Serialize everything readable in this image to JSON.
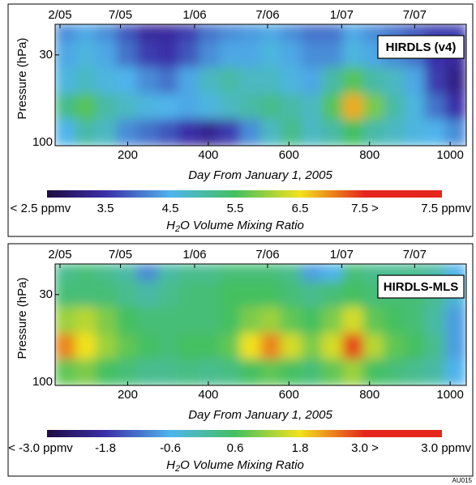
{
  "chart_data": [
    {
      "type": "heatmap",
      "title": "HIRDLS (v4)",
      "xlabel": "Day From January 1, 2005",
      "ylabel": "Pressure (hPa)",
      "xlim": [
        20,
        1040
      ],
      "xticks": [
        200,
        400,
        600,
        800,
        1000
      ],
      "x2ticks": [
        {
          "value": 32,
          "label": "2/05"
        },
        {
          "value": 182,
          "label": "7/05"
        },
        {
          "value": 366,
          "label": "1/06"
        },
        {
          "value": 547,
          "label": "7/06"
        },
        {
          "value": 731,
          "label": "1/07"
        },
        {
          "value": 912,
          "label": "7/07"
        }
      ],
      "ylim": [
        100,
        20
      ],
      "yticks": [
        30,
        100
      ],
      "log_y": true,
      "x_bins": [
        20,
        71,
        122,
        173,
        224,
        275,
        326,
        377,
        428,
        479,
        530,
        581,
        632,
        683,
        734,
        785,
        836,
        887,
        938,
        989,
        1040
      ],
      "y_bins": [
        100,
        70,
        50,
        35,
        25,
        20
      ],
      "z": [
        [
          4.5,
          5.0,
          4.8,
          4.2,
          4.0,
          3.8,
          3.5,
          3.3,
          3.6,
          4.2,
          4.8,
          5.2,
          4.8,
          5.0,
          5.5,
          5.0,
          4.8,
          4.6,
          4.5,
          4.2
        ],
        [
          5.2,
          5.6,
          5.0,
          4.8,
          4.6,
          4.5,
          4.4,
          4.6,
          4.8,
          5.0,
          5.2,
          5.0,
          4.8,
          5.6,
          6.8,
          5.8,
          5.0,
          4.6,
          4.0,
          3.5
        ],
        [
          4.6,
          4.8,
          4.6,
          4.5,
          4.2,
          4.0,
          4.4,
          4.8,
          5.0,
          4.8,
          4.8,
          4.6,
          4.4,
          5.0,
          5.6,
          5.0,
          4.8,
          4.4,
          3.6,
          3.2
        ],
        [
          4.4,
          4.6,
          4.4,
          4.0,
          3.6,
          3.5,
          3.8,
          4.2,
          4.4,
          4.4,
          4.6,
          4.4,
          4.2,
          4.2,
          4.6,
          4.4,
          4.2,
          4.0,
          3.5,
          3.4
        ],
        [
          4.2,
          4.4,
          4.2,
          3.8,
          3.4,
          3.4,
          3.6,
          4.0,
          4.2,
          4.3,
          4.4,
          4.2,
          4.0,
          4.0,
          4.4,
          4.2,
          4.0,
          3.8,
          3.6,
          3.6
        ]
      ],
      "clim": [
        2.5,
        7.5
      ],
      "colormap": [
        "#1c0838",
        "#3b2fa8",
        "#4fb4ec",
        "#44c060",
        "#f2e21c",
        "#e4261c"
      ],
      "colorbar_ticks": [
        {
          "value": 2.5,
          "label": "< 2.5 ppmv"
        },
        3.5,
        4.5,
        5.5,
        6.5,
        {
          "value": 7.5,
          "label": "7.5 >"
        }
      ],
      "colorbar_end_label": "7.5 ppmv",
      "colorbar_label": "H2O Volume Mixing Ratio"
    },
    {
      "type": "heatmap",
      "title": "HIRDLS-MLS",
      "xlabel": "Day From January 1, 2005",
      "ylabel": "Pressure (hPa)",
      "xlim": [
        20,
        1040
      ],
      "xticks": [
        200,
        400,
        600,
        800,
        1000
      ],
      "x2ticks": [
        {
          "value": 32,
          "label": "2/05"
        },
        {
          "value": 182,
          "label": "7/05"
        },
        {
          "value": 366,
          "label": "1/06"
        },
        {
          "value": 547,
          "label": "7/06"
        },
        {
          "value": 731,
          "label": "1/07"
        },
        {
          "value": 912,
          "label": "7/07"
        }
      ],
      "ylim": [
        100,
        20
      ],
      "yticks": [
        30,
        100
      ],
      "log_y": true,
      "x_bins": [
        20,
        71,
        122,
        173,
        224,
        275,
        326,
        377,
        428,
        479,
        530,
        581,
        632,
        683,
        734,
        785,
        836,
        887,
        938,
        989,
        1040
      ],
      "y_bins": [
        100,
        70,
        50,
        35,
        25,
        20
      ],
      "z": [
        [
          0.8,
          1.0,
          0.6,
          0.4,
          0.2,
          0.2,
          0.3,
          0.2,
          0.3,
          0.6,
          0.8,
          0.6,
          0.4,
          0.8,
          1.2,
          0.6,
          0.4,
          0.2,
          0.0,
          -0.6
        ],
        [
          2.4,
          1.8,
          1.2,
          0.8,
          0.6,
          0.4,
          0.6,
          0.6,
          0.8,
          1.8,
          2.4,
          1.6,
          1.0,
          1.6,
          2.8,
          1.4,
          0.8,
          0.6,
          0.2,
          -0.8
        ],
        [
          1.2,
          1.4,
          1.0,
          0.6,
          0.4,
          0.4,
          0.4,
          0.4,
          0.6,
          1.0,
          1.2,
          0.8,
          0.6,
          1.0,
          1.6,
          0.8,
          0.6,
          0.4,
          0.0,
          -0.8
        ],
        [
          0.4,
          0.4,
          0.4,
          0.2,
          0.0,
          0.2,
          0.4,
          0.4,
          0.6,
          0.6,
          0.6,
          0.4,
          0.2,
          0.4,
          0.6,
          0.4,
          0.4,
          0.4,
          0.2,
          -0.4
        ],
        [
          0.2,
          0.4,
          0.2,
          0.0,
          -1.0,
          0.0,
          0.2,
          0.2,
          0.4,
          0.4,
          0.4,
          0.2,
          -0.8,
          -0.6,
          0.4,
          0.2,
          0.2,
          0.2,
          0.0,
          -0.6
        ]
      ],
      "clim": [
        -3.0,
        3.0
      ],
      "colormap": [
        "#1c0838",
        "#3b2fa8",
        "#4fb4ec",
        "#44c060",
        "#f2e21c",
        "#e4261c"
      ],
      "colorbar_ticks": [
        {
          "value": -3.0,
          "label": "< -3.0 ppmv"
        },
        -1.8,
        -0.6,
        0.6,
        1.8,
        {
          "value": 3.0,
          "label": "3.0 >"
        }
      ],
      "colorbar_end_label": "3.0 ppmv",
      "colorbar_label": "H2O Volume Mixing Ratio"
    }
  ],
  "figure_id": "AU015"
}
